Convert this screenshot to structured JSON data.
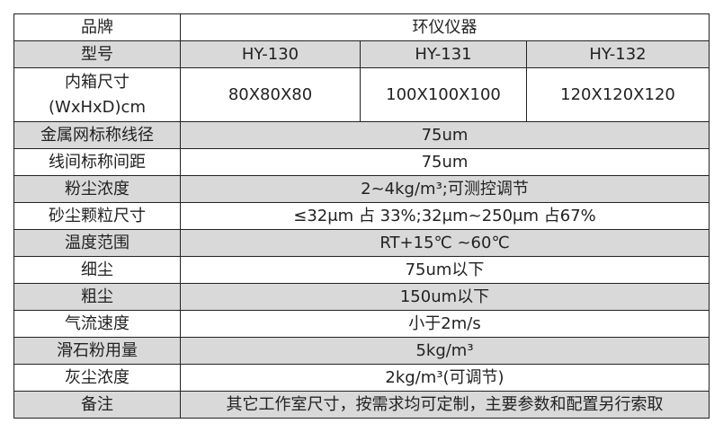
{
  "brand": {
    "label": "品牌",
    "value": "环仪仪器"
  },
  "model": {
    "label": "型号",
    "values": [
      "HY-130",
      "HY-131",
      "HY-132"
    ]
  },
  "inner_size": {
    "label_line1": "内箱尺寸",
    "label_line2": "(WxHxD)cm",
    "values": [
      "80X80X80",
      "100X100X100",
      "120X120X120"
    ]
  },
  "rows": [
    {
      "label": "金属网标称线径",
      "value": "75um"
    },
    {
      "label": "线间标称间距",
      "value": "75um"
    },
    {
      "label": "粉尘浓度",
      "value": "2~4kg/m³;可测控调节"
    },
    {
      "label": "砂尘颗粒尺寸",
      "value": "≤32μm 占 33%;32μm~250μm 占67%"
    },
    {
      "label": "温度范围",
      "value": "RT+15℃ ~60℃"
    },
    {
      "label": "细尘",
      "value": "75um以下"
    },
    {
      "label": "粗尘",
      "value": "150um以下"
    },
    {
      "label": "气流速度",
      "value": "小于2m/s"
    },
    {
      "label": "滑石粉用量",
      "value": "5kg/m³"
    },
    {
      "label": "灰尘浓度",
      "value": "2kg/m³(可调节)"
    },
    {
      "label": "备注",
      "value": "其它工作室尺寸，按需求均可定制，主要参数和配置另行索取"
    }
  ],
  "colors": {
    "shaded_row": "#d9d9d9",
    "border": "#222222"
  }
}
